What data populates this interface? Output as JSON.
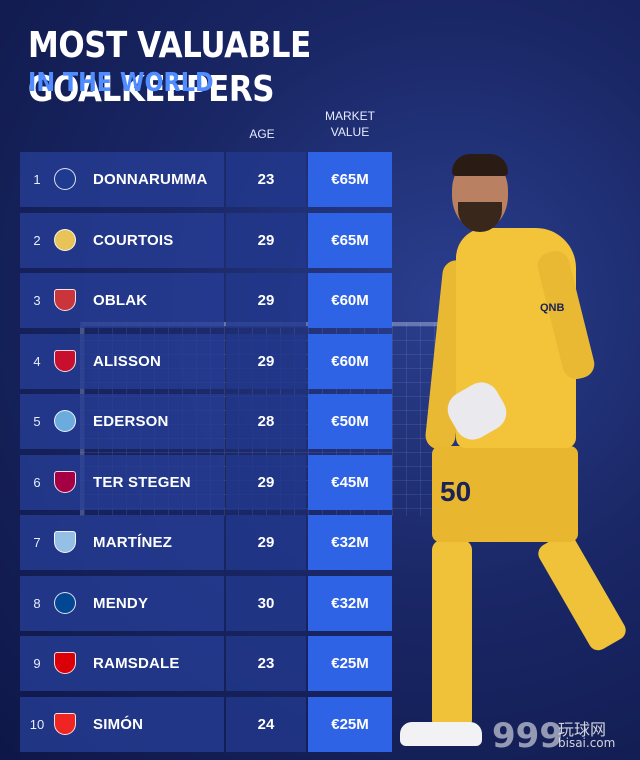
{
  "header": {
    "title": "MOST VALUABLE GOALKEEPERS",
    "subtitle": "IN THE WORLD"
  },
  "columns": {
    "age": "AGE",
    "market_value": "MARKET VALUE"
  },
  "rows": [
    {
      "rank": "1",
      "club_icon": "psg-crest-icon",
      "name": "DONNARUMMA",
      "age": "23",
      "value": "€65M"
    },
    {
      "rank": "2",
      "club_icon": "real-madrid-crest-icon",
      "name": "COURTOIS",
      "age": "29",
      "value": "€65M"
    },
    {
      "rank": "3",
      "club_icon": "atletico-madrid-crest-icon",
      "name": "OBLAK",
      "age": "29",
      "value": "€60M"
    },
    {
      "rank": "4",
      "club_icon": "liverpool-crest-icon",
      "name": "ALISSON",
      "age": "29",
      "value": "€60M"
    },
    {
      "rank": "5",
      "club_icon": "manchester-city-crest-icon",
      "name": "EDERSON",
      "age": "28",
      "value": "€50M"
    },
    {
      "rank": "6",
      "club_icon": "barcelona-crest-icon",
      "name": "TER STEGEN",
      "age": "29",
      "value": "€45M"
    },
    {
      "rank": "7",
      "club_icon": "aston-villa-crest-icon",
      "name": "MARTÍNEZ",
      "age": "29",
      "value": "€32M"
    },
    {
      "rank": "8",
      "club_icon": "chelsea-crest-icon",
      "name": "MENDY",
      "age": "30",
      "value": "€32M"
    },
    {
      "rank": "9",
      "club_icon": "arsenal-crest-icon",
      "name": "RAMSDALE",
      "age": "23",
      "value": "€25M"
    },
    {
      "rank": "10",
      "club_icon": "athletic-bilbao-crest-icon",
      "name": "SIMÓN",
      "age": "24",
      "value": "€25M"
    }
  ],
  "player": {
    "sponsor": "QNB",
    "number": "50"
  },
  "watermark": {
    "number": "999",
    "site": "玩球网",
    "domain": "bisai.com"
  },
  "colors": {
    "background": "#1a2766",
    "subtitle": "#4f8cff",
    "value_cell": "#2f63e6",
    "row_cell": "#263e96",
    "kit": "#f3c43a"
  }
}
